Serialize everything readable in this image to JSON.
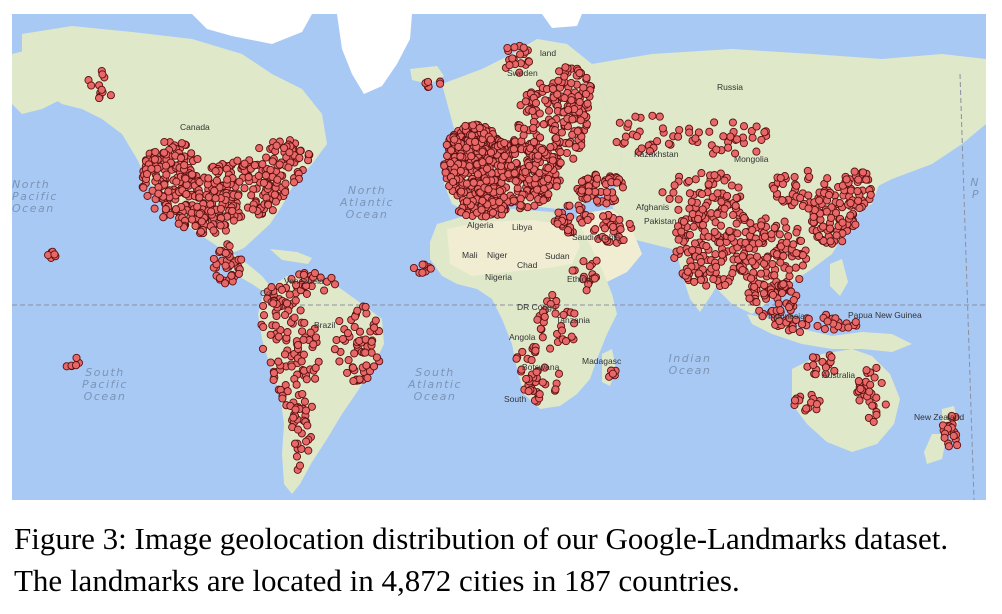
{
  "figure": {
    "caption": "Figure 3: Image geolocation distribution of our Google-Landmarks dataset. The landmarks are located in 4,872 cities in 187 countries."
  },
  "map": {
    "colors": {
      "ocean": "#a9c9f5",
      "land": "#dfe9c9",
      "desert": "#f0edd3",
      "ice": "#ffffff",
      "marker_fill": "#e86868",
      "marker_stroke": "#5a1010",
      "equator": "#8a8fa0"
    },
    "ocean_labels": [
      {
        "id": "north-pacific",
        "lines": [
          "North",
          "Pacific",
          "Ocean"
        ]
      },
      {
        "id": "north-atlantic",
        "lines": [
          "North",
          "Atlantic",
          "Ocean"
        ]
      },
      {
        "id": "south-pacific",
        "lines": [
          "South",
          "Pacific",
          "Ocean"
        ]
      },
      {
        "id": "south-atlantic",
        "lines": [
          "South",
          "Atlantic",
          "Ocean"
        ]
      },
      {
        "id": "indian",
        "lines": [
          "Indian",
          "Ocean"
        ]
      },
      {
        "id": "east-pacific",
        "lines": [
          "N",
          "P"
        ]
      }
    ],
    "country_labels": [
      {
        "id": "canada",
        "text": "Canada"
      },
      {
        "id": "russia",
        "text": "Russia"
      },
      {
        "id": "kazakhstan",
        "text": "Kazakhstan"
      },
      {
        "id": "mongolia",
        "text": "Mongolia"
      },
      {
        "id": "afghanistan",
        "text": "Afghanis"
      },
      {
        "id": "pakistan",
        "text": "Pakistan"
      },
      {
        "id": "algeria",
        "text": "Algeria"
      },
      {
        "id": "libya",
        "text": "Libya"
      },
      {
        "id": "mali",
        "text": "Mali"
      },
      {
        "id": "niger",
        "text": "Niger"
      },
      {
        "id": "chad",
        "text": "Chad"
      },
      {
        "id": "sudan",
        "text": "Sudan"
      },
      {
        "id": "nigeria",
        "text": "Nigeria"
      },
      {
        "id": "ethiopia",
        "text": "Ethiop"
      },
      {
        "id": "saudi-arabia",
        "text": "Saudi Arabia"
      },
      {
        "id": "dr-congo",
        "text": "DR Congo"
      },
      {
        "id": "tanzania",
        "text": "Tanzania"
      },
      {
        "id": "angola",
        "text": "Angola"
      },
      {
        "id": "botswana",
        "text": "Botswana"
      },
      {
        "id": "south-africa",
        "text": "South"
      },
      {
        "id": "madagascar",
        "text": "Madagasc"
      },
      {
        "id": "sweden",
        "text": "Sweden"
      },
      {
        "id": "finland",
        "text": "land"
      },
      {
        "id": "venezuela",
        "text": "Venezuela"
      },
      {
        "id": "colombia",
        "text": "Col"
      },
      {
        "id": "brazil",
        "text": "Brazil"
      },
      {
        "id": "indonesia",
        "text": "Indonesia"
      },
      {
        "id": "papua-new-guinea",
        "text": "Papua New Guinea"
      },
      {
        "id": "australia",
        "text": "Australia"
      },
      {
        "id": "new-zealand",
        "text": "New Zealand"
      }
    ]
  }
}
